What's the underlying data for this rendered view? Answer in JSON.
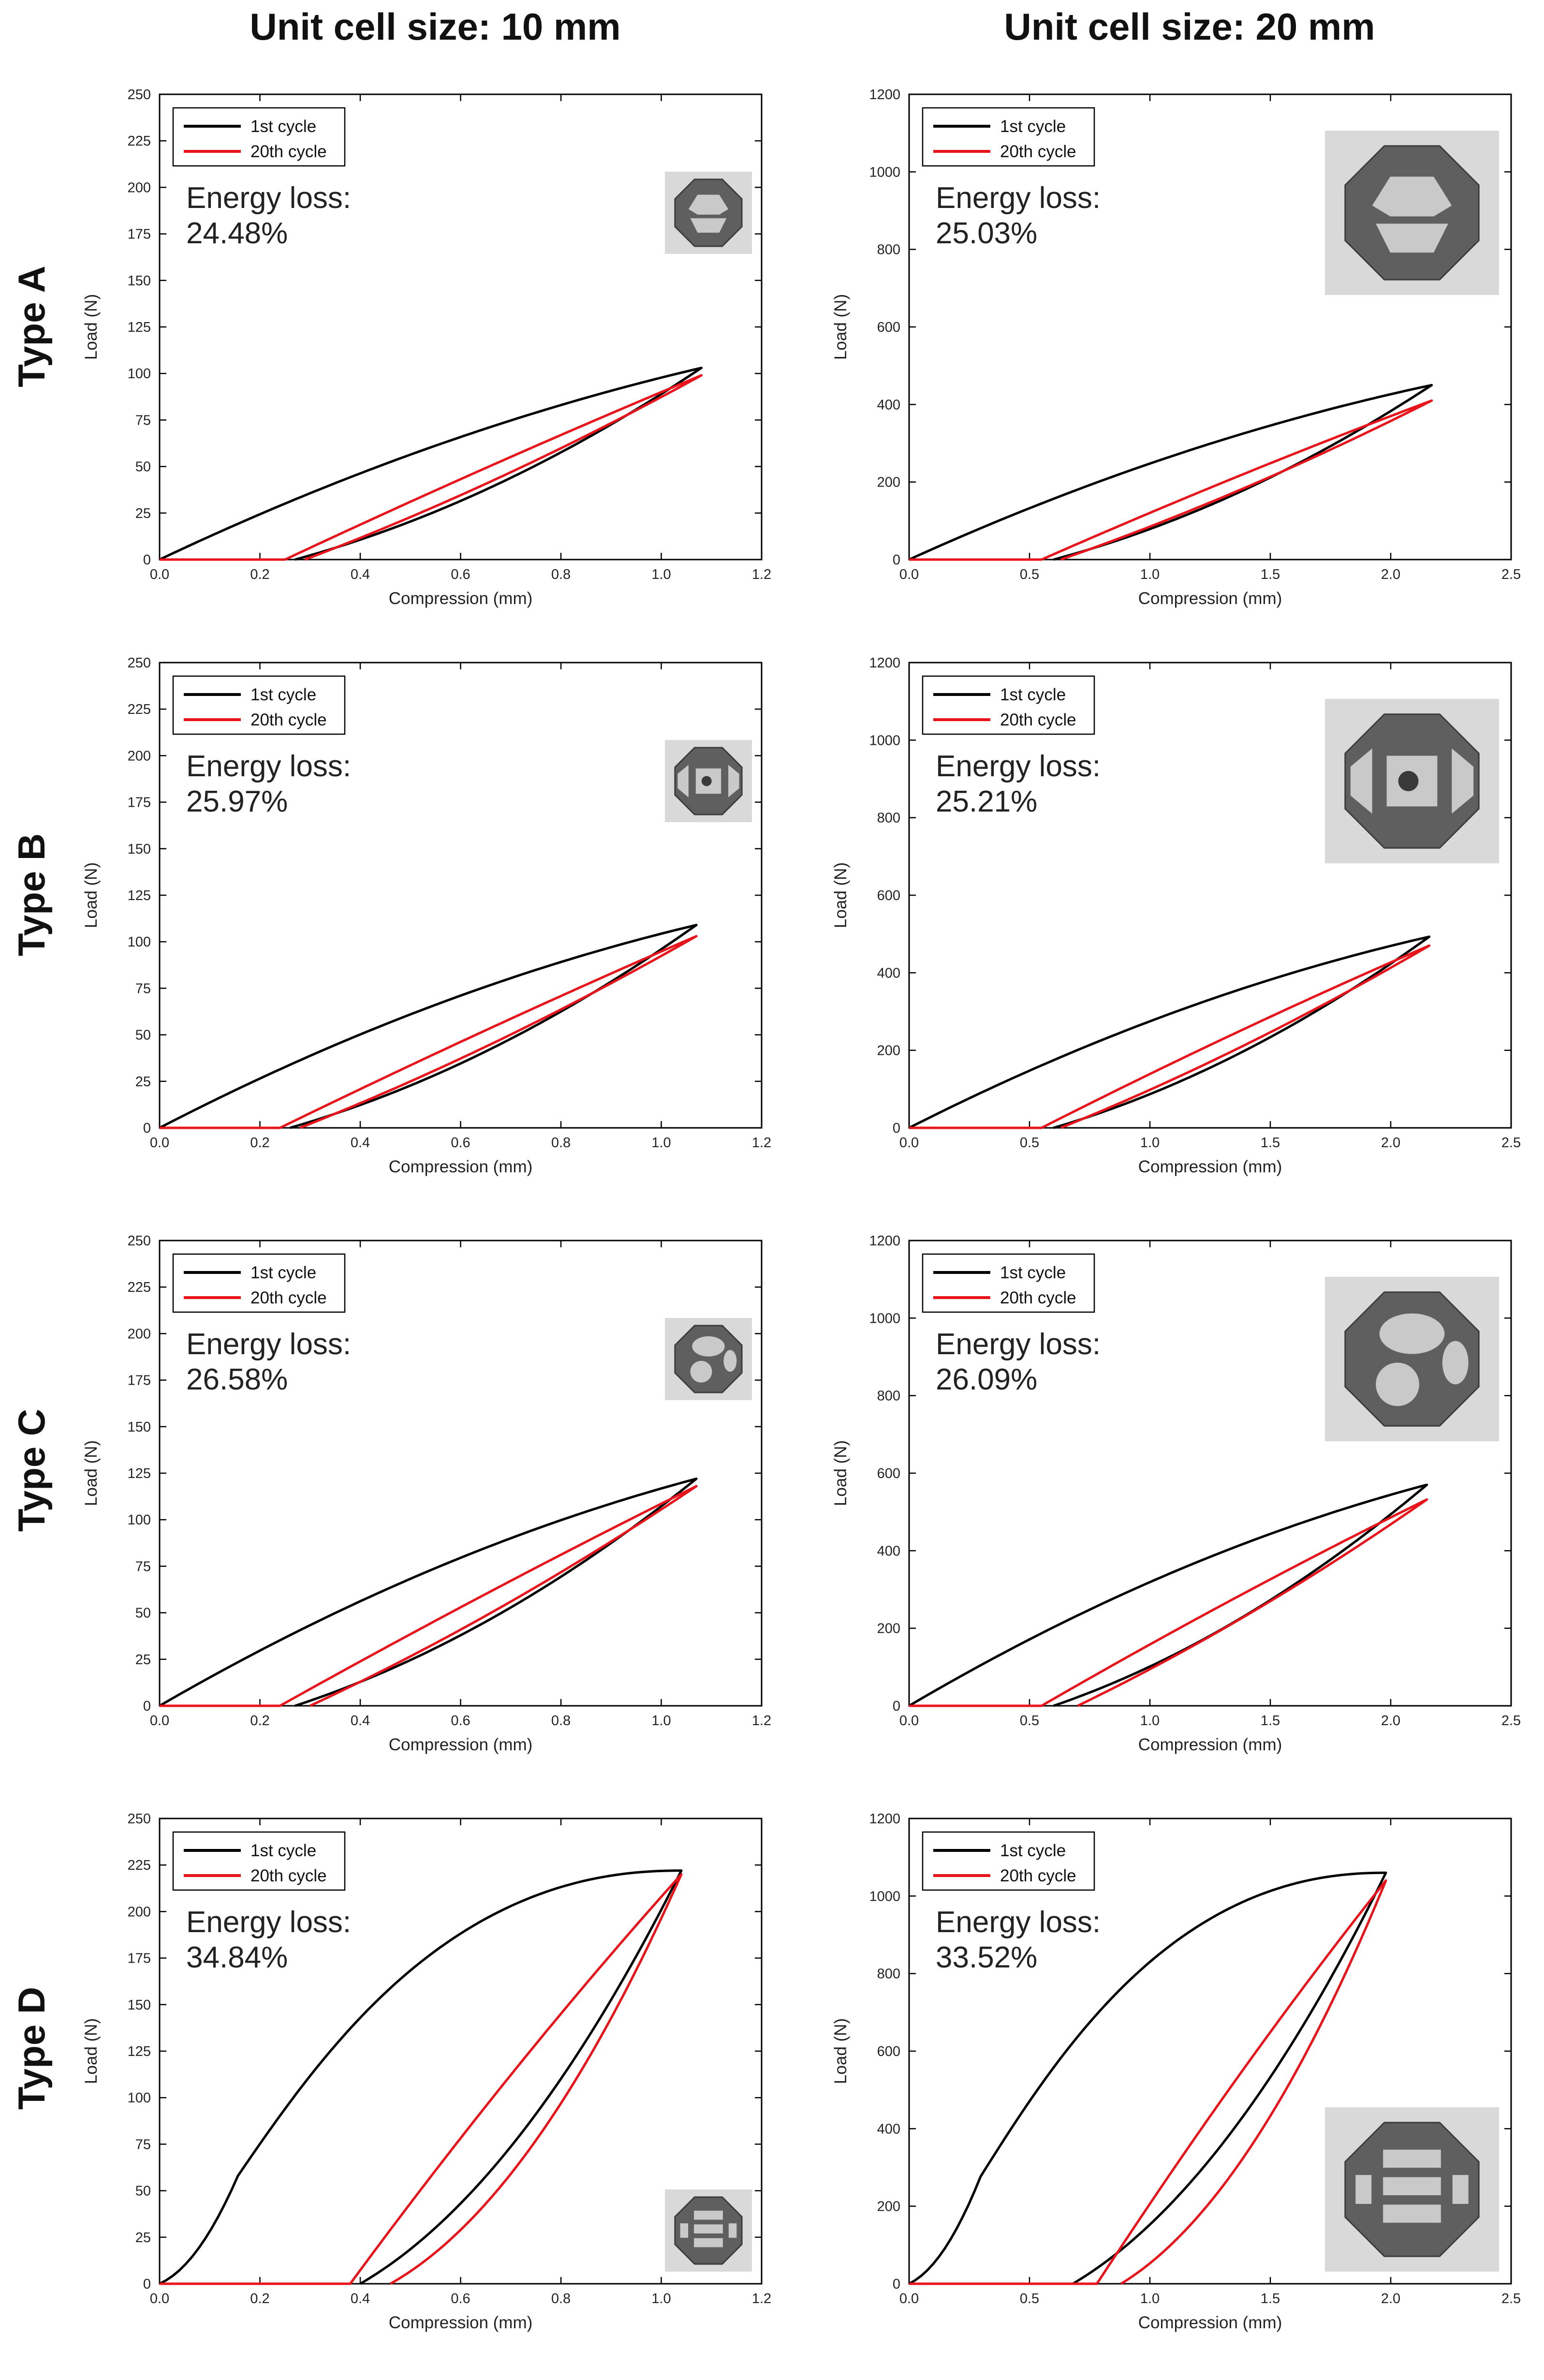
{
  "column_headers": [
    "Unit cell size: 10 mm",
    "Unit cell size: 20 mm"
  ],
  "row_headers": [
    "Type A",
    "Type B",
    "Type C",
    "Type D"
  ],
  "colors": {
    "first_cycle": "#000000",
    "twentieth_cycle": "#e8141b",
    "photo_bg": "#d9d9d9",
    "photo_part": "#5f5f5f"
  },
  "chart_data": [
    {
      "type": "line",
      "panel": "Type A - 10 mm",
      "xlabel": "Compression (mm)",
      "ylabel": "Load (N)",
      "xlim": [
        0,
        1.2
      ],
      "ylim": [
        0,
        250
      ],
      "xticks": [
        "0.0",
        "0.2",
        "0.4",
        "0.6",
        "0.8",
        "1.0",
        "1.2"
      ],
      "yticks": [
        "0",
        "25",
        "50",
        "75",
        "100",
        "125",
        "150",
        "175",
        "200",
        "225",
        "250"
      ],
      "legend": [
        "1st cycle",
        "20th cycle"
      ],
      "legend_position": "top-left",
      "energy_loss_label": "Energy loss:",
      "energy_loss_value": "24.48%",
      "photo": "lattice-photo",
      "photo_position": "top-right",
      "series": [
        {
          "name": "1st cycle",
          "peak": [
            1.08,
            103
          ],
          "loading_bend": 0.34,
          "residual": 0.27,
          "unloading_sag": 0.42
        },
        {
          "name": "20th cycle",
          "peak": [
            1.08,
            99
          ],
          "loading_start": 0.25,
          "loading_bend": 0.06,
          "unloading_end": 0.29,
          "unloading_sag": 0.18
        }
      ]
    },
    {
      "type": "line",
      "panel": "Type A - 20 mm",
      "xlabel": "Compression (mm)",
      "ylabel": "Load (N)",
      "xlim": [
        0,
        2.5
      ],
      "ylim": [
        0,
        1200
      ],
      "xticks": [
        "0.0",
        "0.5",
        "1.0",
        "1.5",
        "2.0",
        "2.5"
      ],
      "yticks": [
        "0",
        "200",
        "400",
        "600",
        "800",
        "1000",
        "1200"
      ],
      "legend": [
        "1st cycle",
        "20th cycle"
      ],
      "legend_position": "top-left",
      "energy_loss_label": "Energy loss:",
      "energy_loss_value": "25.03%",
      "photo": "lattice-photo",
      "photo_position": "top-right",
      "series": [
        {
          "name": "1st cycle",
          "peak": [
            2.17,
            450
          ],
          "loading_bend": 0.36,
          "residual": 0.6,
          "unloading_sag": 0.42
        },
        {
          "name": "20th cycle",
          "peak": [
            2.17,
            410
          ],
          "loading_start": 0.55,
          "loading_bend": 0.08,
          "unloading_end": 0.63,
          "unloading_sag": 0.18
        }
      ]
    },
    {
      "type": "line",
      "panel": "Type B - 10 mm",
      "xlabel": "Compression (mm)",
      "ylabel": "Load (N)",
      "xlim": [
        0,
        1.2
      ],
      "ylim": [
        0,
        250
      ],
      "xticks": [
        "0.0",
        "0.2",
        "0.4",
        "0.6",
        "0.8",
        "1.0",
        "1.2"
      ],
      "yticks": [
        "0",
        "25",
        "50",
        "75",
        "100",
        "125",
        "150",
        "175",
        "200",
        "225",
        "250"
      ],
      "legend": [
        "1st cycle",
        "20th cycle"
      ],
      "legend_position": "top-left",
      "energy_loss_label": "Energy loss:",
      "energy_loss_value": "25.97%",
      "photo": "lattice-photo",
      "photo_position": "top-right",
      "series": [
        {
          "name": "1st cycle",
          "peak": [
            1.07,
            109
          ],
          "loading_bend": 0.37,
          "residual": 0.26,
          "unloading_sag": 0.42
        },
        {
          "name": "20th cycle",
          "peak": [
            1.07,
            103
          ],
          "loading_start": 0.24,
          "loading_bend": 0.06,
          "unloading_end": 0.28,
          "unloading_sag": 0.18
        }
      ]
    },
    {
      "type": "line",
      "panel": "Type B - 20 mm",
      "xlabel": "Compression (mm)",
      "ylabel": "Load (N)",
      "xlim": [
        0,
        2.5
      ],
      "ylim": [
        0,
        1200
      ],
      "xticks": [
        "0.0",
        "0.5",
        "1.0",
        "1.5",
        "2.0",
        "2.5"
      ],
      "yticks": [
        "0",
        "200",
        "400",
        "600",
        "800",
        "1000",
        "1200"
      ],
      "legend": [
        "1st cycle",
        "20th cycle"
      ],
      "legend_position": "top-left",
      "energy_loss_label": "Energy loss:",
      "energy_loss_value": "25.21%",
      "photo": "lattice-photo",
      "photo_position": "top-right",
      "series": [
        {
          "name": "1st cycle",
          "peak": [
            2.16,
            493
          ],
          "loading_bend": 0.38,
          "residual": 0.6,
          "unloading_sag": 0.42
        },
        {
          "name": "20th cycle",
          "peak": [
            2.16,
            470
          ],
          "loading_start": 0.55,
          "loading_bend": 0.08,
          "unloading_end": 0.63,
          "unloading_sag": 0.18
        }
      ]
    },
    {
      "type": "line",
      "panel": "Type C - 10 mm",
      "xlabel": "Compression (mm)",
      "ylabel": "Load (N)",
      "xlim": [
        0,
        1.2
      ],
      "ylim": [
        0,
        250
      ],
      "xticks": [
        "0.0",
        "0.2",
        "0.4",
        "0.6",
        "0.8",
        "1.0",
        "1.2"
      ],
      "yticks": [
        "0",
        "25",
        "50",
        "75",
        "100",
        "125",
        "150",
        "175",
        "200",
        "225",
        "250"
      ],
      "legend": [
        "1st cycle",
        "20th cycle"
      ],
      "legend_position": "top-left",
      "energy_loss_label": "Energy loss:",
      "energy_loss_value": "26.58%",
      "photo": "lattice-photo",
      "photo_position": "top-right",
      "series": [
        {
          "name": "1st cycle",
          "peak": [
            1.07,
            122
          ],
          "loading_bend": 0.37,
          "residual": 0.27,
          "unloading_sag": 0.42
        },
        {
          "name": "20th cycle",
          "peak": [
            1.07,
            118
          ],
          "loading_start": 0.24,
          "loading_bend": 0.06,
          "unloading_end": 0.3,
          "unloading_sag": 0.18
        }
      ]
    },
    {
      "type": "line",
      "panel": "Type C - 20 mm",
      "xlabel": "Compression (mm)",
      "ylabel": "Load (N)",
      "xlim": [
        0,
        2.5
      ],
      "ylim": [
        0,
        1200
      ],
      "xticks": [
        "0.0",
        "0.5",
        "1.0",
        "1.5",
        "2.0",
        "2.5"
      ],
      "yticks": [
        "0",
        "200",
        "400",
        "600",
        "800",
        "1000",
        "1200"
      ],
      "legend": [
        "1st cycle",
        "20th cycle"
      ],
      "legend_position": "top-left",
      "energy_loss_label": "Energy loss:",
      "energy_loss_value": "26.09%",
      "photo": "lattice-photo",
      "photo_position": "top-right",
      "series": [
        {
          "name": "1st cycle",
          "peak": [
            2.15,
            570
          ],
          "loading_bend": 0.38,
          "residual": 0.6,
          "unloading_sag": 0.42
        },
        {
          "name": "20th cycle",
          "peak": [
            2.15,
            532
          ],
          "loading_start": 0.55,
          "loading_bend": 0.08,
          "unloading_end": 0.7,
          "unloading_sag": 0.18
        }
      ]
    },
    {
      "type": "line",
      "panel": "Type D - 10 mm",
      "xlabel": "Compression (mm)",
      "ylabel": "Load (N)",
      "xlim": [
        0,
        1.2
      ],
      "ylim": [
        0,
        250
      ],
      "xticks": [
        "0.0",
        "0.2",
        "0.4",
        "0.6",
        "0.8",
        "1.0",
        "1.2"
      ],
      "yticks": [
        "0",
        "25",
        "50",
        "75",
        "100",
        "125",
        "150",
        "175",
        "200",
        "225",
        "250"
      ],
      "legend": [
        "1st cycle",
        "20th cycle"
      ],
      "legend_position": "top-left",
      "energy_loss_label": "Energy loss:",
      "energy_loss_value": "34.84%",
      "photo": "lattice-photo",
      "photo_position": "bottom-right",
      "series": [
        {
          "name": "1st cycle",
          "peak": [
            1.04,
            222
          ],
          "loading_sigmoid": true,
          "residual": 0.4,
          "unloading_sag": 0.55
        },
        {
          "name": "20th cycle",
          "peak": [
            1.04,
            220
          ],
          "loading_start": 0.38,
          "loading_bend": 0.1,
          "unloading_end": 0.46,
          "unloading_sag": 0.6
        }
      ]
    },
    {
      "type": "line",
      "panel": "Type D - 20 mm",
      "xlabel": "Compression (mm)",
      "ylabel": "Load (N)",
      "xlim": [
        0,
        2.5
      ],
      "ylim": [
        0,
        1200
      ],
      "xticks": [
        "0.0",
        "0.5",
        "1.0",
        "1.5",
        "2.0",
        "2.5"
      ],
      "yticks": [
        "0",
        "200",
        "400",
        "600",
        "800",
        "1000",
        "1200"
      ],
      "legend": [
        "1st cycle",
        "20th cycle"
      ],
      "legend_position": "top-left",
      "energy_loss_label": "Energy loss:",
      "energy_loss_value": "33.52%",
      "photo": "lattice-photo",
      "photo_position": "bottom-right",
      "series": [
        {
          "name": "1st cycle",
          "peak": [
            1.98,
            1060
          ],
          "loading_sigmoid": true,
          "residual": 0.68,
          "unloading_sag": 0.55
        },
        {
          "name": "20th cycle",
          "peak": [
            1.98,
            1040
          ],
          "loading_start": 0.78,
          "loading_bend": 0.1,
          "unloading_end": 0.88,
          "unloading_sag": 0.6
        }
      ]
    }
  ]
}
